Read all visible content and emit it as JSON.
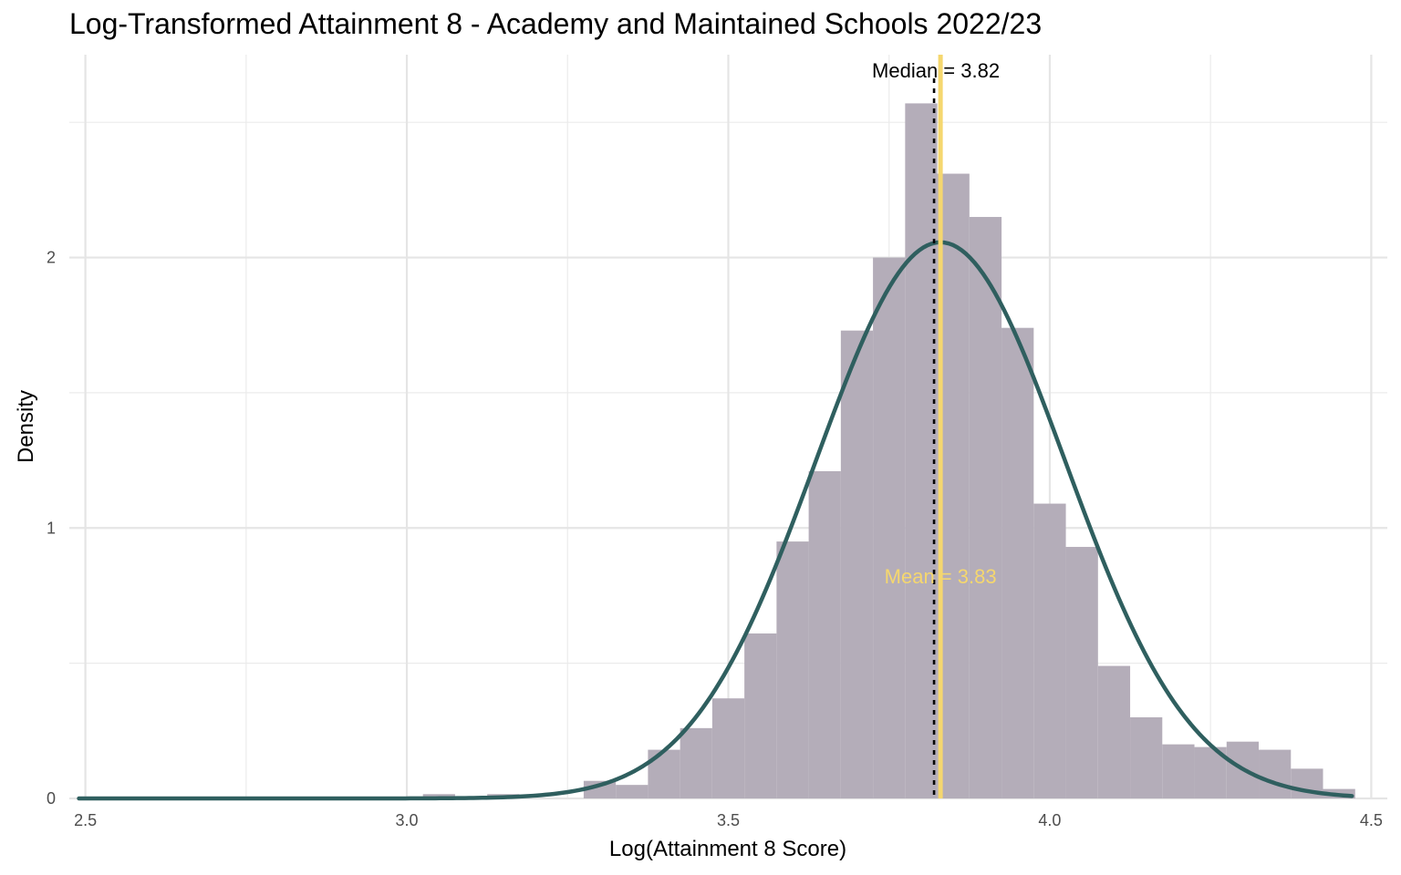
{
  "chart_data": {
    "type": "histogram",
    "title": "Log-Transformed Attainment 8 - Academy and Maintained Schools 2022/23",
    "xlabel": "Log(Attainment 8 Score)",
    "ylabel": "Density",
    "xlim": [
      2.475,
      4.525
    ],
    "ylim": [
      0,
      2.75
    ],
    "x_ticks": [
      "2.5",
      "3.0",
      "3.5",
      "4.0",
      "4.5"
    ],
    "y_ticks": [
      "0",
      "1",
      "2"
    ],
    "bin_width": 0.05,
    "bins": [
      {
        "start": 3.0,
        "density": 0.0
      },
      {
        "start": 3.025,
        "density": 0.016
      },
      {
        "start": 3.125,
        "density": 0.016
      },
      {
        "start": 3.275,
        "density": 0.065
      },
      {
        "start": 3.325,
        "density": 0.05
      },
      {
        "start": 3.375,
        "density": 0.18
      },
      {
        "start": 3.425,
        "density": 0.26
      },
      {
        "start": 3.475,
        "density": 0.37
      },
      {
        "start": 3.525,
        "density": 0.61
      },
      {
        "start": 3.575,
        "density": 0.95
      },
      {
        "start": 3.625,
        "density": 1.21
      },
      {
        "start": 3.675,
        "density": 1.73
      },
      {
        "start": 3.725,
        "density": 2.0
      },
      {
        "start": 3.775,
        "density": 2.57
      },
      {
        "start": 3.825,
        "density": 2.31
      },
      {
        "start": 3.875,
        "density": 2.15
      },
      {
        "start": 3.925,
        "density": 1.74
      },
      {
        "start": 3.975,
        "density": 1.09
      },
      {
        "start": 4.025,
        "density": 0.93
      },
      {
        "start": 4.075,
        "density": 0.49
      },
      {
        "start": 4.125,
        "density": 0.3
      },
      {
        "start": 4.175,
        "density": 0.2
      },
      {
        "start": 4.225,
        "density": 0.19
      },
      {
        "start": 4.275,
        "density": 0.21
      },
      {
        "start": 4.325,
        "density": 0.18
      },
      {
        "start": 4.375,
        "density": 0.11
      },
      {
        "start": 4.425,
        "density": 0.035
      }
    ],
    "normal_curve": {
      "mean": 3.83,
      "sd": 0.194,
      "x_range": [
        2.49,
        4.47
      ],
      "color": "#2f5f5f"
    },
    "median": {
      "value": 3.82,
      "label": "Median = 3.82",
      "color": "#000000"
    },
    "mean": {
      "value": 3.83,
      "label": "Mean = 3.83",
      "color": "#f5d76e"
    },
    "bar_color": "#b4adb9",
    "grid": true,
    "legend": "none"
  }
}
